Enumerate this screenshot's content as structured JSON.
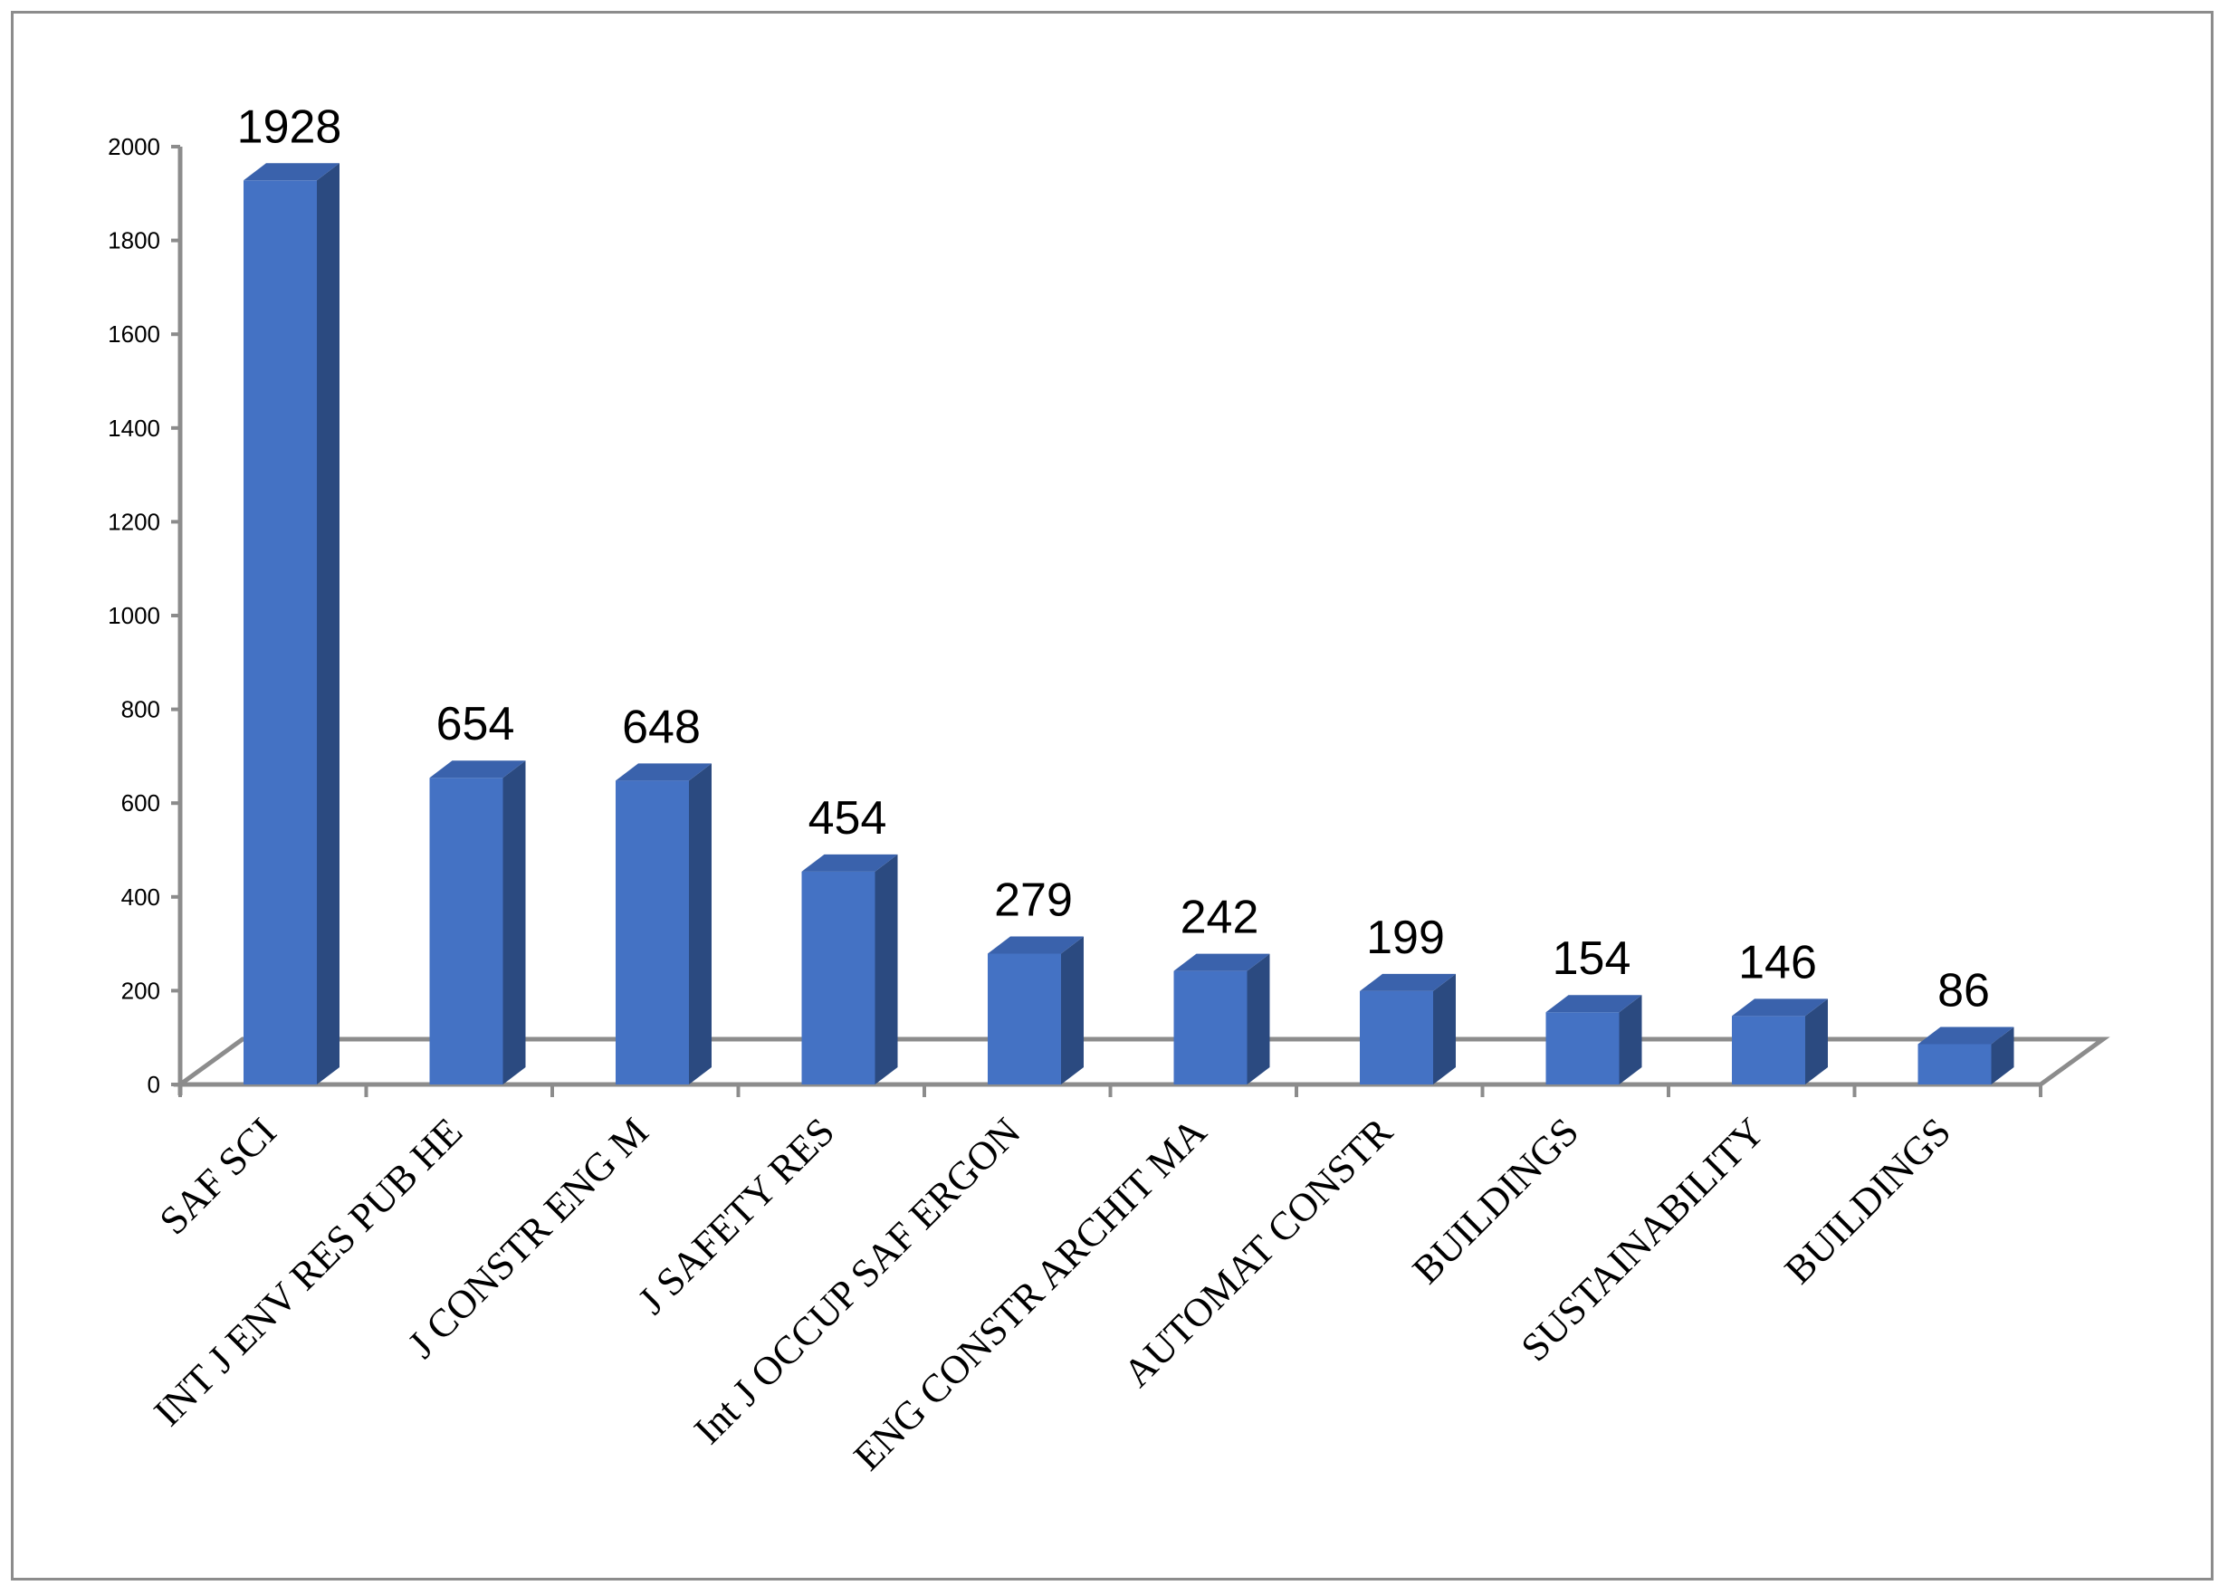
{
  "chart_data": {
    "type": "bar",
    "style": "3d-column",
    "categories": [
      "SAF SCI",
      "INT J ENV RES PUB HE",
      "J CONSTR ENG M",
      "J SAFETY RES",
      "Int J OCCUP SAF ERGON",
      "ENG CONSTR ARCHIT MA",
      "AUTOMAT CONSTR",
      "BUILDINGS",
      "SUSTAINABILITY",
      "BUILDINGS"
    ],
    "values": [
      1928,
      654,
      648,
      454,
      279,
      242,
      199,
      154,
      146,
      86
    ],
    "yticks": [
      "0",
      "200",
      "400",
      "600",
      "800",
      "1000",
      "1200",
      "1400",
      "1600",
      "1800",
      "2000"
    ],
    "ylim": [
      0,
      2000
    ],
    "title": "",
    "xlabel": "",
    "ylabel": "",
    "grid": false,
    "legend": "none",
    "colors": {
      "bar_front": "#4472C4",
      "bar_side": "#2B4A80",
      "bar_top": "#3A62AC",
      "axis": "#8c8c8c",
      "frame": "#8c8c8c"
    }
  }
}
